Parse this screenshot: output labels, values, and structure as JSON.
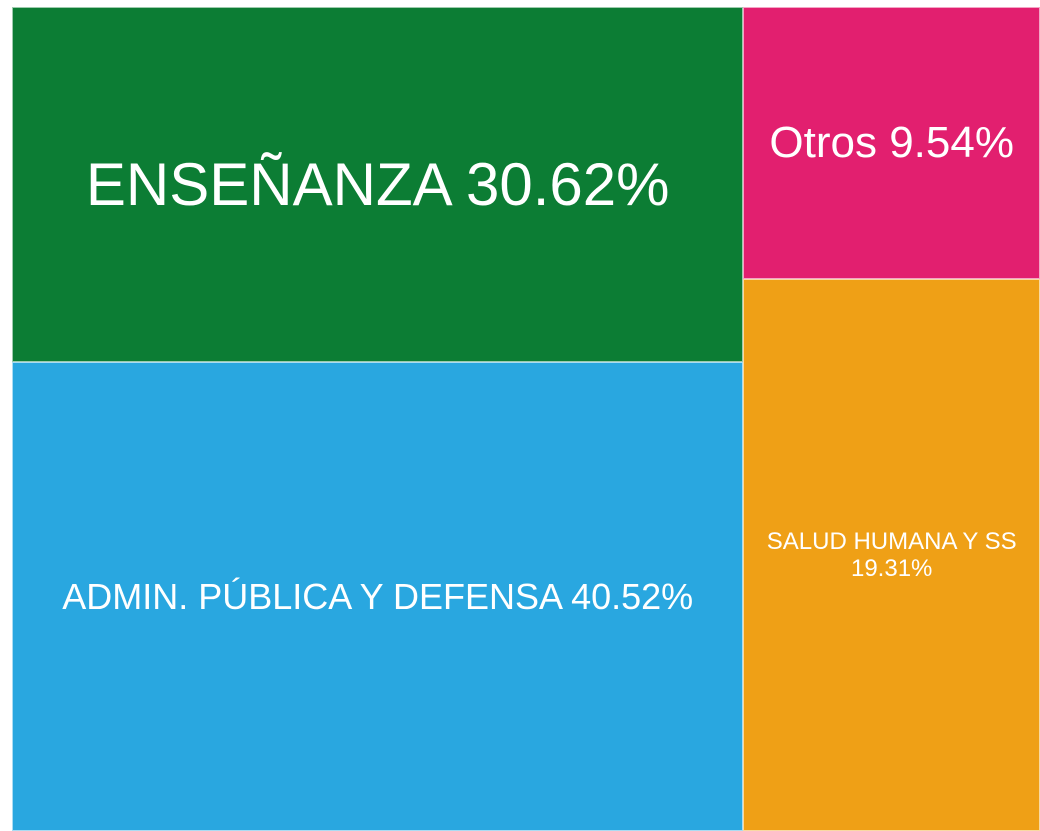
{
  "chart_data": {
    "type": "treemap",
    "categories": [
      "ENSEÑANZA",
      "ADMIN. PÚBLICA Y DEFENSA",
      "Otros",
      "SALUD HUMANA Y SS"
    ],
    "values": [
      30.62,
      40.52,
      9.54,
      19.31
    ],
    "value_labels": [
      "30.62%",
      "40.52%",
      "9.54%",
      "19.31%"
    ],
    "colors": [
      "#0c7d34",
      "#29a7e0",
      "#e21f6f",
      "#efa016"
    ]
  }
}
